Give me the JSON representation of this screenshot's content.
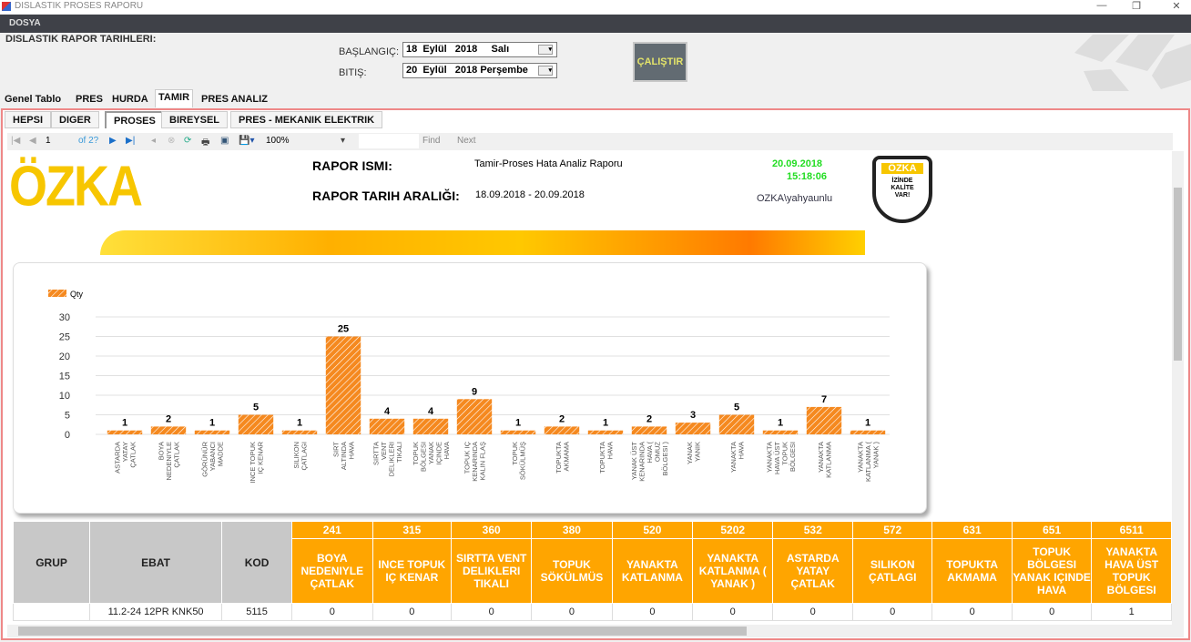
{
  "window": {
    "title": "DISLASTIK PROSES RAPORU",
    "controls": [
      "—",
      "❐",
      "✕"
    ]
  },
  "menu": {
    "file": "DOSYA"
  },
  "header": {
    "label": "DISLASTIK RAPOR TARIHLERI:",
    "start_label": "BAŞLANGIÇ:",
    "start_value": "18  Eylül   2018     Salı",
    "end_label": "BITIŞ:",
    "end_value": "20  Eylül   2018 Perşembe",
    "run_button": "ÇALIŞTIR"
  },
  "tabs": [
    {
      "label": "Genel Tablo"
    },
    {
      "label": "PRES"
    },
    {
      "label": "HURDA"
    },
    {
      "label": "TAMIR",
      "active": true
    },
    {
      "label": "PRES ANALIZ"
    }
  ],
  "subtabs": [
    {
      "label": "HEPSI"
    },
    {
      "label": "DIGER"
    },
    {
      "label": "PROSES",
      "active": true
    },
    {
      "label": "BIREYSEL"
    },
    {
      "label": "PRES - MEKANIK ELEKTRIK"
    }
  ],
  "toolbar": {
    "page": "1",
    "of": "of 2?",
    "zoom": "100%",
    "find": "Find",
    "next": "Next"
  },
  "report": {
    "logo": "ÖZKA",
    "name_label": "RAPOR ISMI:",
    "name_value": "Tamir-Proses Hata Analiz Raporu",
    "range_label": "RAPOR TARIH ARALIĞI:",
    "range_value": "18.09.2018   - 20.09.2018",
    "date": "20.09.2018",
    "time": "15:18:06",
    "user": "OZKA\\yahyaunlu",
    "badge_top": "ÖZKA",
    "badge_text": "İZİNDE KALİTE VAR!"
  },
  "colors": {
    "bar": "#f5891f",
    "header_orange": "#ffa500",
    "timestamp": "#22dd22",
    "menubar": "#3f4148"
  },
  "chart_data": {
    "type": "bar",
    "legend": "Qty",
    "legend_position": "top-left",
    "ylim": [
      0,
      30
    ],
    "yticks": [
      0,
      5,
      10,
      15,
      20,
      25,
      30
    ],
    "grid": true,
    "pattern": "hatched",
    "categories": [
      "ASTARDA YATAY ÇATLAK",
      "BOYA NEDENIYLE ÇATLAK",
      "GÖRÜNÜR YABANCI MADDE",
      "INCE TOPUK IÇ KENAR",
      "SILIKON ÇATLAGI",
      "SIRT ALTINDA HAVA",
      "SIRTTA VENT DELIKLERI TIKALI",
      "TOPUK BÖLGESI YANAK IÇINDE HAVA",
      "TOPUK IÇ KENARINDA KALIN FLAŞ",
      "TOPUK SÖKÜLMÜŞ",
      "TOPUKTA AKMAMA",
      "TOPUKTA HAVA",
      "YANAK ÜST KENARINDA HAVA ( OMUZ BÖLGESI )",
      "YANAK YANIK",
      "YANAKTA HAVA",
      "YANAKTA HAVA ÜST TOPUK BÖLGESI",
      "YANAKTA KATLANMA",
      "YANAKTA KATLANMA ( YANAK )"
    ],
    "values": [
      1,
      2,
      1,
      5,
      1,
      25,
      4,
      4,
      9,
      1,
      2,
      1,
      2,
      3,
      5,
      1,
      7,
      1
    ]
  },
  "table": {
    "fixed_headers": [
      "GRUP",
      "EBAT",
      "KOD"
    ],
    "columns": [
      {
        "code": "241",
        "name": "BOYA NEDENIYLE ÇATLAK"
      },
      {
        "code": "315",
        "name": "INCE TOPUK IÇ KENAR"
      },
      {
        "code": "360",
        "name": "SIRTTA VENT DELIKLERI TIKALI"
      },
      {
        "code": "380",
        "name": "TOPUK SÖKÜLMÜS"
      },
      {
        "code": "520",
        "name": "YANAKTA KATLANMA"
      },
      {
        "code": "5202",
        "name": "YANAKTA KATLANMA ( YANAK )"
      },
      {
        "code": "532",
        "name": "ASTARDA YATAY ÇATLAK"
      },
      {
        "code": "572",
        "name": "SILIKON ÇATLAGI"
      },
      {
        "code": "631",
        "name": "TOPUKTA AKMAMA"
      },
      {
        "code": "651",
        "name": "TOPUK BÖLGESI YANAK IÇINDE HAVA"
      },
      {
        "code": "6511",
        "name": "YANAKTA HAVA ÜST TOPUK BÖLGESI"
      }
    ],
    "rows": [
      {
        "grup": "",
        "ebat": "11.2-24 12PR KNK50",
        "kod": "5115",
        "values": [
          "0",
          "0",
          "0",
          "0",
          "0",
          "0",
          "0",
          "0",
          "0",
          "0",
          "1"
        ]
      }
    ]
  }
}
